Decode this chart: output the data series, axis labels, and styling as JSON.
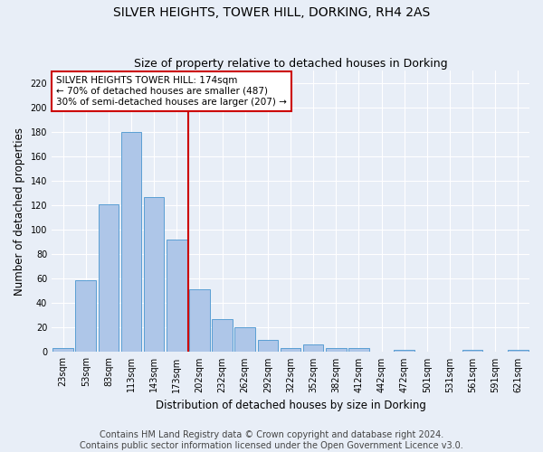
{
  "title": "SILVER HEIGHTS, TOWER HILL, DORKING, RH4 2AS",
  "subtitle": "Size of property relative to detached houses in Dorking",
  "xlabel": "Distribution of detached houses by size in Dorking",
  "ylabel": "Number of detached properties",
  "footer_line1": "Contains HM Land Registry data © Crown copyright and database right 2024.",
  "footer_line2": "Contains public sector information licensed under the Open Government Licence v3.0.",
  "bar_labels": [
    "23sqm",
    "53sqm",
    "83sqm",
    "113sqm",
    "143sqm",
    "173sqm",
    "202sqm",
    "232sqm",
    "262sqm",
    "292sqm",
    "322sqm",
    "352sqm",
    "382sqm",
    "412sqm",
    "442sqm",
    "472sqm",
    "501sqm",
    "531sqm",
    "561sqm",
    "591sqm",
    "621sqm"
  ],
  "bar_values": [
    3,
    59,
    121,
    180,
    127,
    92,
    51,
    27,
    20,
    10,
    3,
    6,
    3,
    3,
    0,
    2,
    0,
    0,
    2,
    0,
    2
  ],
  "bar_color": "#aec6e8",
  "bar_edge_color": "#5a9fd4",
  "vline_x": 5.5,
  "vline_color": "#cc0000",
  "annotation_text": "SILVER HEIGHTS TOWER HILL: 174sqm\n← 70% of detached houses are smaller (487)\n30% of semi-detached houses are larger (207) →",
  "annotation_box_color": "#ffffff",
  "annotation_box_edge": "#cc0000",
  "ylim": [
    0,
    230
  ],
  "yticks": [
    0,
    20,
    40,
    60,
    80,
    100,
    120,
    140,
    160,
    180,
    200,
    220
  ],
  "bg_color": "#e8eef7",
  "plot_bg_color": "#e8eef7",
  "grid_color": "#ffffff",
  "title_fontsize": 10,
  "subtitle_fontsize": 9,
  "axis_label_fontsize": 8.5,
  "tick_fontsize": 7,
  "footer_fontsize": 7,
  "annotation_fontsize": 7.5
}
